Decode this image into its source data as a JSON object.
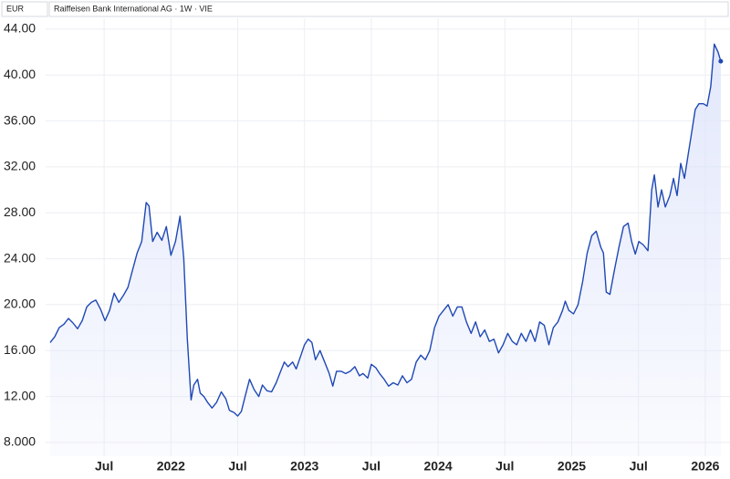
{
  "chart_data": {
    "type": "line",
    "title": "Raiffeisen Bank International AG · 1W · VIE",
    "unit": "EUR",
    "color": "#1f48b4",
    "fill": "#dfe5fb",
    "grid": true,
    "x": [
      2021.096,
      2021.13,
      2021.164,
      2021.199,
      2021.233,
      2021.267,
      2021.301,
      2021.336,
      2021.37,
      2021.404,
      2021.438,
      2021.473,
      2021.507,
      2021.541,
      2021.575,
      2021.61,
      2021.644,
      2021.678,
      2021.712,
      2021.747,
      2021.781,
      2021.815,
      2021.836,
      2021.863,
      2021.897,
      2021.932,
      2021.966,
      2022.0,
      2022.034,
      2022.068,
      2022.096,
      2022.123,
      2022.151,
      2022.171,
      2022.199,
      2022.219,
      2022.247,
      2022.274,
      2022.308,
      2022.342,
      2022.377,
      2022.411,
      2022.438,
      2022.473,
      2022.5,
      2022.527,
      2022.555,
      2022.589,
      2022.623,
      2022.658,
      2022.685,
      2022.719,
      2022.753,
      2022.788,
      2022.815,
      2022.849,
      2022.877,
      2022.911,
      2022.938,
      2022.973,
      2023.0,
      2023.027,
      2023.055,
      2023.082,
      2023.116,
      2023.151,
      2023.185,
      2023.212,
      2023.24,
      2023.274,
      2023.308,
      2023.342,
      2023.377,
      2023.411,
      2023.438,
      2023.473,
      2023.5,
      2023.534,
      2023.562,
      2023.596,
      2023.63,
      2023.664,
      2023.699,
      2023.733,
      2023.767,
      2023.801,
      2023.836,
      2023.87,
      2023.904,
      2023.938,
      2023.973,
      2024.007,
      2024.041,
      2024.075,
      2024.11,
      2024.144,
      2024.178,
      2024.212,
      2024.247,
      2024.281,
      2024.315,
      2024.349,
      2024.384,
      2024.418,
      2024.452,
      2024.486,
      2024.521,
      2024.555,
      2024.589,
      2024.623,
      2024.658,
      2024.692,
      2024.726,
      2024.76,
      2024.795,
      2024.829,
      2024.863,
      2024.897,
      2024.932,
      2024.952,
      2024.979,
      2025.014,
      2025.048,
      2025.082,
      2025.116,
      2025.15,
      2025.184,
      2025.218,
      2025.238,
      2025.259,
      2025.286,
      2025.32,
      2025.354,
      2025.388,
      2025.422,
      2025.449,
      2025.476,
      2025.503,
      2025.537,
      2025.571,
      2025.599,
      2025.619,
      2025.646,
      2025.673,
      2025.701,
      2025.735,
      2025.762,
      2025.789,
      2025.816,
      2025.844,
      2025.871,
      2025.898,
      2025.925,
      2025.952,
      2025.986,
      2026.014,
      2026.041,
      2026.068,
      2026.096,
      2026.116
    ],
    "values": [
      16.7,
      17.2,
      18.0,
      18.3,
      18.8,
      18.4,
      17.9,
      18.6,
      19.8,
      20.2,
      20.4,
      19.6,
      18.6,
      19.5,
      21.0,
      20.2,
      20.8,
      21.5,
      23.0,
      24.5,
      25.5,
      28.9,
      28.6,
      25.5,
      26.3,
      25.6,
      26.8,
      24.3,
      25.5,
      27.7,
      24.0,
      17.0,
      11.7,
      13.0,
      13.5,
      12.3,
      12.0,
      11.5,
      11.0,
      11.5,
      12.4,
      11.8,
      10.8,
      10.6,
      10.3,
      10.7,
      12.0,
      13.5,
      12.6,
      12.0,
      13.0,
      12.5,
      12.4,
      13.2,
      14.0,
      15.0,
      14.6,
      15.0,
      14.4,
      15.6,
      16.5,
      17.0,
      16.7,
      15.2,
      16.0,
      15.0,
      14.0,
      12.9,
      14.2,
      14.2,
      14.0,
      14.2,
      14.6,
      13.8,
      14.0,
      13.6,
      14.8,
      14.5,
      14.0,
      13.5,
      12.9,
      13.2,
      13.0,
      13.8,
      13.2,
      13.5,
      15.0,
      15.6,
      15.2,
      16.0,
      18.0,
      19.0,
      19.5,
      20.0,
      19.0,
      19.8,
      19.8,
      18.5,
      17.5,
      18.5,
      17.2,
      17.8,
      16.8,
      17.0,
      15.8,
      16.5,
      17.5,
      16.8,
      16.5,
      17.5,
      16.8,
      17.8,
      16.8,
      18.5,
      18.2,
      16.5,
      18.0,
      18.5,
      19.5,
      20.3,
      19.5,
      19.2,
      20.0,
      22.0,
      24.5,
      26.0,
      26.4,
      25.0,
      24.5,
      21.1,
      20.9,
      23.0,
      25.0,
      26.8,
      27.1,
      25.5,
      24.4,
      25.5,
      25.2,
      24.7,
      30.0,
      31.3,
      28.5,
      30.0,
      28.5,
      29.5,
      31.0,
      29.5,
      32.3,
      31.0,
      33.0,
      35.0,
      37.0,
      37.5,
      37.5,
      37.3,
      39.0,
      42.7,
      42.0,
      41.2
    ],
    "xlim": [
      2021.062,
      2026.151
    ],
    "xticks": [
      {
        "value": 2021.5,
        "label": "Jul"
      },
      2022,
      {
        "value": 2022.5,
        "label": "Jul"
      },
      2023,
      {
        "value": 2023.5,
        "label": "Jul"
      },
      2024,
      {
        "value": 2024.5,
        "label": "Jul"
      },
      2025,
      {
        "value": 2025.5,
        "label": "Jul"
      },
      2026
    ],
    "ylim": [
      6.8,
      45.9
    ],
    "yticks": [
      {
        "value": 8,
        "label": "8.000"
      },
      {
        "value": 12,
        "label": "12.00"
      },
      {
        "value": 16,
        "label": "16.00"
      },
      {
        "value": 20,
        "label": "20.00"
      },
      {
        "value": 24,
        "label": "24.00"
      },
      {
        "value": 28,
        "label": "28.00"
      },
      {
        "value": 32,
        "label": "32.00"
      },
      {
        "value": 36,
        "label": "36.00"
      },
      {
        "value": 40,
        "label": "40.00"
      },
      {
        "value": 44,
        "label": "44.00"
      }
    ]
  }
}
